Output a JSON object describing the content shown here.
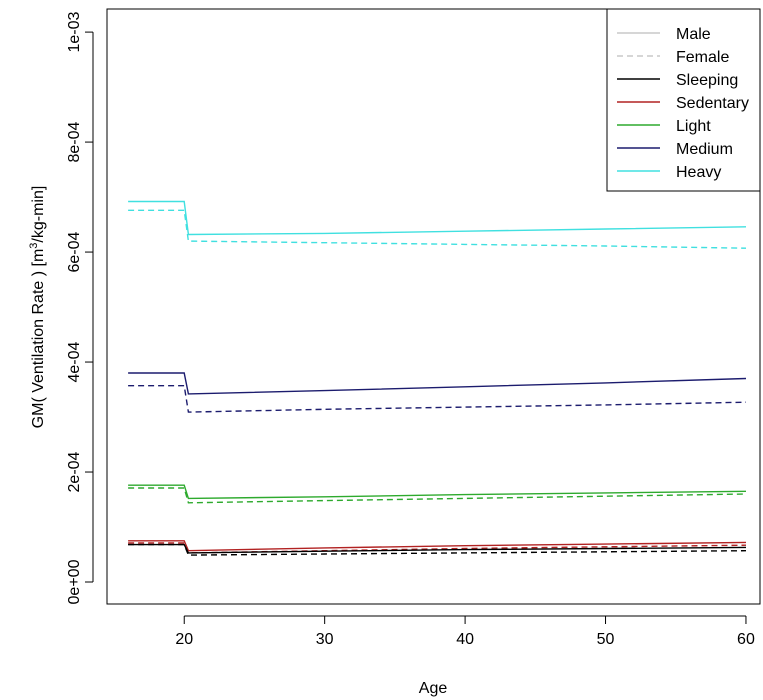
{
  "chart_data": {
    "type": "line",
    "xlabel": "Age",
    "ylabel_prefix": "GM( Ventilation Rate ) [m",
    "ylabel_sup": "3",
    "ylabel_suffix": "/kg-min]",
    "xlim": [
      14.5,
      61
    ],
    "ylim": [
      -4e-05,
      0.001042
    ],
    "x_ticks": [
      20,
      30,
      40,
      50,
      60
    ],
    "x_tick_labels": [
      "20",
      "30",
      "40",
      "50",
      "60"
    ],
    "y_ticks": [
      0,
      0.0002,
      0.0004,
      0.0006,
      0.0008,
      0.001
    ],
    "y_tick_labels": [
      "0e+00",
      "2e-04",
      "4e-04",
      "6e-04",
      "8e-04",
      "1e-03"
    ],
    "grid": false,
    "legend_position": "top-right",
    "legend": [
      {
        "label": "Male",
        "color": "#c8c8c8",
        "dash": "solid"
      },
      {
        "label": "Female",
        "color": "#c8c8c8",
        "dash": "dashed"
      },
      {
        "label": "Sleeping",
        "color": "#000000",
        "dash": "solid"
      },
      {
        "label": "Sedentary",
        "color": "#b22222",
        "dash": "solid"
      },
      {
        "label": "Light",
        "color": "#2eaa2e",
        "dash": "solid"
      },
      {
        "label": "Medium",
        "color": "#1c1c6e",
        "dash": "solid"
      },
      {
        "label": "Heavy",
        "color": "#40e0e0",
        "dash": "solid"
      }
    ],
    "series": [
      {
        "name": "Heavy",
        "sex": "Male",
        "color": "#40e0e0",
        "dash": "solid",
        "points": [
          [
            16,
            0.000692
          ],
          [
            20,
            0.000692
          ],
          [
            20.3,
            0.000632
          ],
          [
            30,
            0.000634
          ],
          [
            40,
            0.000638
          ],
          [
            50,
            0.000642
          ],
          [
            60,
            0.000646
          ]
        ]
      },
      {
        "name": "Heavy",
        "sex": "Female",
        "color": "#40e0e0",
        "dash": "dashed",
        "points": [
          [
            16,
            0.000676
          ],
          [
            20,
            0.000676
          ],
          [
            20.3,
            0.00062
          ],
          [
            30,
            0.000617
          ],
          [
            40,
            0.000614
          ],
          [
            50,
            0.000611
          ],
          [
            60,
            0.000607
          ]
        ]
      },
      {
        "name": "Medium",
        "sex": "Male",
        "color": "#1c1c6e",
        "dash": "solid",
        "points": [
          [
            16,
            0.00038
          ],
          [
            20,
            0.00038
          ],
          [
            20.3,
            0.000342
          ],
          [
            30,
            0.000348
          ],
          [
            40,
            0.000355
          ],
          [
            50,
            0.000362
          ],
          [
            60,
            0.00037
          ]
        ]
      },
      {
        "name": "Medium",
        "sex": "Female",
        "color": "#1c1c6e",
        "dash": "dashed",
        "points": [
          [
            16,
            0.000357
          ],
          [
            20,
            0.000357
          ],
          [
            20.3,
            0.000309
          ],
          [
            30,
            0.000314
          ],
          [
            40,
            0.000318
          ],
          [
            50,
            0.000322
          ],
          [
            60,
            0.000327
          ]
        ]
      },
      {
        "name": "Light",
        "sex": "Male",
        "color": "#2eaa2e",
        "dash": "solid",
        "points": [
          [
            16,
            0.000176
          ],
          [
            20,
            0.000176
          ],
          [
            20.3,
            0.000152
          ],
          [
            30,
            0.000155
          ],
          [
            40,
            0.000159
          ],
          [
            50,
            0.000162
          ],
          [
            60,
            0.000165
          ]
        ]
      },
      {
        "name": "Light",
        "sex": "Female",
        "color": "#2eaa2e",
        "dash": "dashed",
        "points": [
          [
            16,
            0.000171
          ],
          [
            20,
            0.000171
          ],
          [
            20.3,
            0.000144
          ],
          [
            30,
            0.000148
          ],
          [
            40,
            0.000152
          ],
          [
            50,
            0.000156
          ],
          [
            60,
            0.00016
          ]
        ]
      },
      {
        "name": "Sedentary",
        "sex": "Male",
        "color": "#b22222",
        "dash": "solid",
        "points": [
          [
            16,
            7.5e-05
          ],
          [
            20,
            7.5e-05
          ],
          [
            20.3,
            5.7e-05
          ],
          [
            30,
            6.2e-05
          ],
          [
            40,
            6.6e-05
          ],
          [
            50,
            6.9e-05
          ],
          [
            60,
            7.2e-05
          ]
        ]
      },
      {
        "name": "Sedentary",
        "sex": "Female",
        "color": "#b22222",
        "dash": "dashed",
        "points": [
          [
            16,
            7.1e-05
          ],
          [
            20,
            7.1e-05
          ],
          [
            20.3,
            5.3e-05
          ],
          [
            30,
            5.7e-05
          ],
          [
            40,
            6.1e-05
          ],
          [
            50,
            6.4e-05
          ],
          [
            60,
            6.7e-05
          ]
        ]
      },
      {
        "name": "Sleeping",
        "sex": "Male",
        "color": "#000000",
        "dash": "solid",
        "points": [
          [
            16,
            6.8e-05
          ],
          [
            20,
            6.8e-05
          ],
          [
            20.3,
            5.3e-05
          ],
          [
            30,
            5.6e-05
          ],
          [
            40,
            5.9e-05
          ],
          [
            50,
            6.1e-05
          ],
          [
            60,
            6.3e-05
          ]
        ]
      },
      {
        "name": "Sleeping",
        "sex": "Female",
        "color": "#000000",
        "dash": "dashed",
        "points": [
          [
            16,
            6.8e-05
          ],
          [
            20,
            6.8e-05
          ],
          [
            20.3,
            4.9e-05
          ],
          [
            30,
            5.1e-05
          ],
          [
            40,
            5.3e-05
          ],
          [
            50,
            5.5e-05
          ],
          [
            60,
            5.7e-05
          ]
        ]
      }
    ]
  }
}
